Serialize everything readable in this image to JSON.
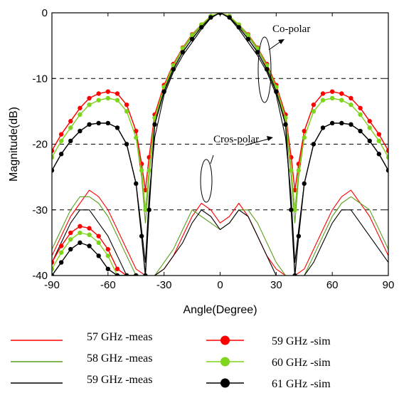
{
  "chart_data": {
    "type": "line",
    "title": "",
    "xlabel": "Angle(Degree)",
    "ylabel": "Magnitude(dB)",
    "xlim": [
      -90,
      90
    ],
    "ylim": [
      -40,
      0
    ],
    "xticks": [
      -90,
      -60,
      -30,
      0,
      30,
      60,
      90
    ],
    "yticks": [
      0,
      -10,
      -20,
      -30,
      -40
    ],
    "reference_lines": [
      -10,
      -20,
      -30
    ],
    "annotations": [
      {
        "text": "Co-polar",
        "x": 37,
        "y": -5
      },
      {
        "text": "Cros-polar",
        "x": -15,
        "y": -19.3
      }
    ],
    "legend_position": "below",
    "series": [
      {
        "name": "57 GHz -meas",
        "color": "#ff0000",
        "marker": "none",
        "group": "co",
        "x": [
          -90,
          -85,
          -80,
          -75,
          -70,
          -65,
          -60,
          -55,
          -50,
          -45,
          -42,
          -40,
          -38,
          -35,
          -30,
          -25,
          -20,
          -15,
          -10,
          -5,
          0,
          5,
          10,
          15,
          20,
          25,
          30,
          35,
          38,
          40,
          42,
          45,
          50,
          55,
          60,
          65,
          70,
          75,
          80,
          85,
          90
        ],
        "y": [
          -21,
          -18.5,
          -16.5,
          -14.5,
          -13,
          -12.3,
          -12,
          -12.3,
          -14,
          -18,
          -24,
          -30,
          -24,
          -16,
          -11.5,
          -8,
          -5.5,
          -3.5,
          -2,
          -0.6,
          0,
          -0.6,
          -2,
          -3.5,
          -5.5,
          -8,
          -11.5,
          -16,
          -24,
          -30,
          -24,
          -18,
          -14,
          -12.3,
          -12,
          -12.3,
          -13,
          -14.5,
          -16.5,
          -18.5,
          -21
        ]
      },
      {
        "name": "57 GHz -meas",
        "color": "#ff0000",
        "marker": "none",
        "group": "cross",
        "x": [
          -90,
          -85,
          -80,
          -75,
          -70,
          -65,
          -60,
          -55,
          -50,
          -45,
          -40,
          -35,
          -30,
          -25,
          -20,
          -15,
          -10,
          -5,
          0,
          5,
          10,
          15,
          20,
          25,
          30,
          35,
          40,
          45,
          50,
          55,
          60,
          65,
          70,
          75,
          80,
          85,
          90
        ],
        "y": [
          -37,
          -34,
          -31,
          -29,
          -27,
          -28,
          -30,
          -33,
          -36,
          -39,
          -40,
          -40,
          -39,
          -37,
          -34,
          -31,
          -29,
          -30,
          -32,
          -31,
          -29,
          -31,
          -34,
          -37,
          -39,
          -40,
          -40,
          -39,
          -36,
          -33,
          -30,
          -28,
          -27,
          -29,
          -31,
          -34,
          -37
        ]
      },
      {
        "name": "58 GHz -meas",
        "color": "#5a9e1a",
        "marker": "none",
        "group": "co",
        "x": [
          -90,
          -85,
          -80,
          -75,
          -70,
          -65,
          -60,
          -55,
          -50,
          -45,
          -42,
          -40,
          -38,
          -35,
          -30,
          -25,
          -20,
          -15,
          -10,
          -5,
          0,
          5,
          10,
          15,
          20,
          25,
          30,
          35,
          38,
          40,
          42,
          45,
          50,
          55,
          60,
          65,
          70,
          75,
          80,
          85,
          90
        ],
        "y": [
          -22,
          -19.5,
          -17.5,
          -15.5,
          -14,
          -13.3,
          -13,
          -13.3,
          -15,
          -19,
          -25,
          -32,
          -25,
          -16.5,
          -11.8,
          -8.2,
          -5.6,
          -3.6,
          -2,
          -0.6,
          0,
          -0.6,
          -2,
          -3.6,
          -5.6,
          -8.2,
          -11.8,
          -16.5,
          -25,
          -32,
          -25,
          -19,
          -15,
          -13.3,
          -13,
          -13.3,
          -14,
          -15.5,
          -17.5,
          -19.5,
          -22
        ]
      },
      {
        "name": "58 GHz -meas",
        "color": "#5a9e1a",
        "marker": "none",
        "group": "cross",
        "x": [
          -90,
          -85,
          -80,
          -75,
          -70,
          -65,
          -60,
          -55,
          -50,
          -45,
          -40,
          -35,
          -30,
          -25,
          -20,
          -15,
          -10,
          -5,
          0,
          5,
          10,
          15,
          20,
          25,
          30,
          35,
          40,
          45,
          50,
          55,
          60,
          65,
          70,
          75,
          80,
          85,
          90
        ],
        "y": [
          -36,
          -33,
          -30,
          -28,
          -28,
          -29,
          -31,
          -34,
          -37,
          -40,
          -40,
          -40,
          -38,
          -36,
          -33,
          -30,
          -31,
          -32,
          -33,
          -32,
          -30,
          -30,
          -32,
          -35,
          -38,
          -40,
          -40,
          -40,
          -37,
          -34,
          -31,
          -29,
          -28,
          -29,
          -30,
          -33,
          -36
        ]
      },
      {
        "name": "59 GHz -meas",
        "color": "#000000",
        "marker": "none",
        "group": "co",
        "x": [
          -90,
          -85,
          -80,
          -75,
          -70,
          -65,
          -60,
          -55,
          -50,
          -45,
          -42,
          -40,
          -38,
          -35,
          -30,
          -25,
          -20,
          -15,
          -10,
          -5,
          0,
          5,
          10,
          15,
          20,
          25,
          30,
          35,
          38,
          40,
          42,
          45,
          50,
          55,
          60,
          65,
          70,
          75,
          80,
          85,
          90
        ],
        "y": [
          -24,
          -21.5,
          -19.5,
          -18,
          -17,
          -16.8,
          -16.8,
          -17.5,
          -20,
          -26,
          -33,
          -38,
          -28,
          -19,
          -12.5,
          -9,
          -6.5,
          -4.5,
          -2.5,
          -0.8,
          0,
          -0.8,
          -2.5,
          -4.5,
          -6.5,
          -9,
          -12.5,
          -19,
          -28,
          -38,
          -33,
          -26,
          -20,
          -17.5,
          -16.8,
          -16.8,
          -17,
          -18,
          -19.5,
          -21.5,
          -24
        ]
      },
      {
        "name": "59 GHz -meas",
        "color": "#000000",
        "marker": "none",
        "group": "cross",
        "x": [
          -90,
          -85,
          -80,
          -75,
          -70,
          -65,
          -60,
          -55,
          -50,
          -45,
          -40,
          -35,
          -30,
          -25,
          -20,
          -15,
          -10,
          -5,
          0,
          5,
          10,
          15,
          20,
          25,
          30,
          35,
          40,
          45,
          50,
          55,
          60,
          65,
          70,
          75,
          80,
          85,
          90
        ],
        "y": [
          -38,
          -35,
          -32,
          -30,
          -30,
          -32,
          -34,
          -37,
          -40,
          -40,
          -40,
          -40,
          -39,
          -37,
          -35,
          -32,
          -30,
          -31,
          -33,
          -32,
          -30,
          -31,
          -34,
          -37,
          -40,
          -40,
          -40,
          -40,
          -38,
          -35,
          -32,
          -30,
          -30,
          -32,
          -34,
          -36,
          -38
        ]
      },
      {
        "name": "59 GHz -sim",
        "color": "#ff0000",
        "marker": "circle",
        "group": "co",
        "x": [
          -90,
          -85,
          -80,
          -75,
          -70,
          -65,
          -60,
          -55,
          -50,
          -45,
          -42,
          -40,
          -38,
          -35,
          -30,
          -25,
          -20,
          -15,
          -10,
          -5,
          0,
          5,
          10,
          15,
          20,
          25,
          30,
          35,
          38,
          40,
          42,
          45,
          50,
          55,
          60,
          65,
          70,
          75,
          80,
          85,
          90
        ],
        "y": [
          -21,
          -18.5,
          -16.5,
          -14.5,
          -13,
          -12.3,
          -12,
          -12.3,
          -14,
          -18,
          -23,
          -27,
          -22,
          -15.5,
          -11,
          -7.8,
          -5.3,
          -3.3,
          -1.8,
          -0.5,
          0,
          -0.5,
          -1.8,
          -3.3,
          -5.3,
          -7.8,
          -11,
          -15.5,
          -22,
          -27,
          -23,
          -18,
          -14,
          -12.3,
          -12,
          -12.3,
          -13,
          -14.5,
          -16.5,
          -18.5,
          -21
        ]
      },
      {
        "name": "59 GHz -sim",
        "color": "#ff0000",
        "marker": "circle",
        "group": "cross",
        "x": [
          -90,
          -85,
          -80,
          -75,
          -70,
          -65,
          -60,
          -55,
          -50,
          -45
        ],
        "y": [
          -38,
          -35.5,
          -33.5,
          -32.5,
          -32.8,
          -34,
          -36,
          -39,
          -40,
          -40
        ]
      },
      {
        "name": "60 GHz -sim",
        "color": "#7fd41c",
        "marker": "circle",
        "group": "co",
        "x": [
          -90,
          -85,
          -80,
          -75,
          -70,
          -65,
          -60,
          -55,
          -50,
          -45,
          -42,
          -40,
          -38,
          -35,
          -30,
          -25,
          -20,
          -15,
          -10,
          -5,
          0,
          5,
          10,
          15,
          20,
          25,
          30,
          35,
          38,
          40,
          42,
          45,
          50,
          55,
          60,
          65,
          70,
          75,
          80,
          85,
          90
        ],
        "y": [
          -22,
          -19.5,
          -17.5,
          -15.5,
          -14,
          -13.3,
          -13,
          -13.3,
          -15,
          -19,
          -24,
          -30,
          -24,
          -16,
          -11.3,
          -8,
          -5.4,
          -3.4,
          -1.8,
          -0.5,
          0,
          -0.5,
          -1.8,
          -3.4,
          -5.4,
          -8,
          -11.3,
          -16,
          -24,
          -30,
          -24,
          -19,
          -15,
          -13.3,
          -13,
          -13.3,
          -14,
          -15.5,
          -17.5,
          -19.5,
          -22
        ]
      },
      {
        "name": "60 GHz -sim",
        "color": "#7fd41c",
        "marker": "circle",
        "group": "cross",
        "x": [
          -90,
          -85,
          -80,
          -75,
          -70,
          -65,
          -60,
          -55,
          -50,
          -45
        ],
        "y": [
          -39,
          -36.5,
          -34.5,
          -33.5,
          -33.8,
          -35,
          -37,
          -40,
          -40,
          -40
        ]
      },
      {
        "name": "61 GHz -sim",
        "color": "#000000",
        "marker": "circle",
        "group": "co",
        "x": [
          -90,
          -85,
          -80,
          -75,
          -70,
          -65,
          -60,
          -55,
          -50,
          -45,
          -42,
          -40,
          -38,
          -35,
          -30,
          -25,
          -20,
          -15,
          -10,
          -5,
          0,
          5,
          10,
          15,
          20,
          25,
          30,
          35,
          38,
          40,
          42,
          45,
          50,
          55,
          60,
          65,
          70,
          75,
          80,
          85,
          90
        ],
        "y": [
          -24,
          -21.5,
          -19.5,
          -18,
          -17,
          -16.8,
          -16.8,
          -17.5,
          -20,
          -26,
          -34,
          -40,
          -30,
          -17,
          -12,
          -8.6,
          -6,
          -4,
          -2.2,
          -0.7,
          0,
          -0.7,
          -2.2,
          -4,
          -6,
          -8.6,
          -12,
          -17,
          -30,
          -40,
          -34,
          -26,
          -20,
          -17.5,
          -16.8,
          -16.8,
          -17,
          -18,
          -19.5,
          -21.5,
          -24
        ]
      },
      {
        "name": "61 GHz -sim",
        "color": "#000000",
        "marker": "circle",
        "group": "cross",
        "x": [
          -90,
          -85,
          -80,
          -75,
          -70,
          -65,
          -60,
          -55,
          -50,
          -45
        ],
        "y": [
          -40,
          -38,
          -36,
          -35,
          -35.5,
          -37,
          -39,
          -40,
          -40,
          -40
        ]
      }
    ]
  },
  "legend": [
    {
      "label": "57 GHz -meas",
      "color": "#ff0000",
      "marker": false
    },
    {
      "label": "58 GHz -meas",
      "color": "#5a9e1a",
      "marker": false
    },
    {
      "label": "59 GHz -meas",
      "color": "#000000",
      "marker": false
    },
    {
      "label": "59 GHz -sim",
      "color": "#ff0000",
      "marker": true
    },
    {
      "label": "60 GHz -sim",
      "color": "#7fd41c",
      "marker": true
    },
    {
      "label": "61 GHz -sim",
      "color": "#000000",
      "marker": true
    }
  ]
}
